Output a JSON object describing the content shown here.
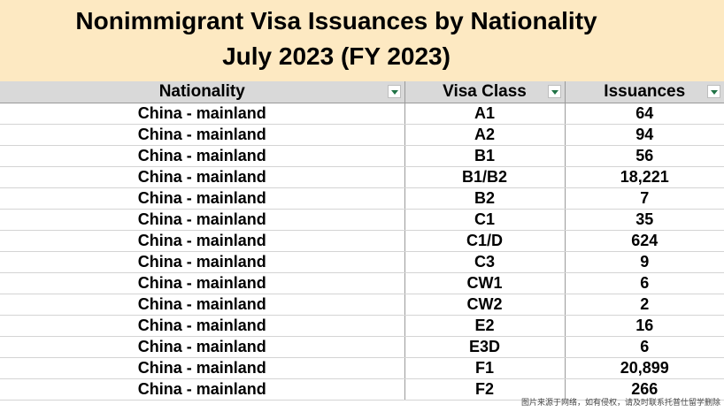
{
  "title": {
    "line1": "Nonimmigrant Visa Issuances by Nationality",
    "line2": "July 2023 (FY 2023)"
  },
  "columns": [
    "Nationality",
    "Visa Class",
    "Issuances"
  ],
  "rows": [
    [
      "China - mainland",
      "A1",
      "64"
    ],
    [
      "China - mainland",
      "A2",
      "94"
    ],
    [
      "China - mainland",
      "B1",
      "56"
    ],
    [
      "China - mainland",
      "B1/B2",
      "18,221"
    ],
    [
      "China - mainland",
      "B2",
      "7"
    ],
    [
      "China - mainland",
      "C1",
      "35"
    ],
    [
      "China - mainland",
      "C1/D",
      "624"
    ],
    [
      "China - mainland",
      "C3",
      "9"
    ],
    [
      "China - mainland",
      "CW1",
      "6"
    ],
    [
      "China - mainland",
      "CW2",
      "2"
    ],
    [
      "China - mainland",
      "E2",
      "16"
    ],
    [
      "China - mainland",
      "E3D",
      "6"
    ],
    [
      "China - mainland",
      "F1",
      "20,899"
    ],
    [
      "China - mainland",
      "F2",
      "266"
    ]
  ],
  "watermark": "图片来源于网络，如有侵权，请及时联系托普仕留学删除",
  "icons": {
    "filter": "filter-dropdown-icon"
  }
}
